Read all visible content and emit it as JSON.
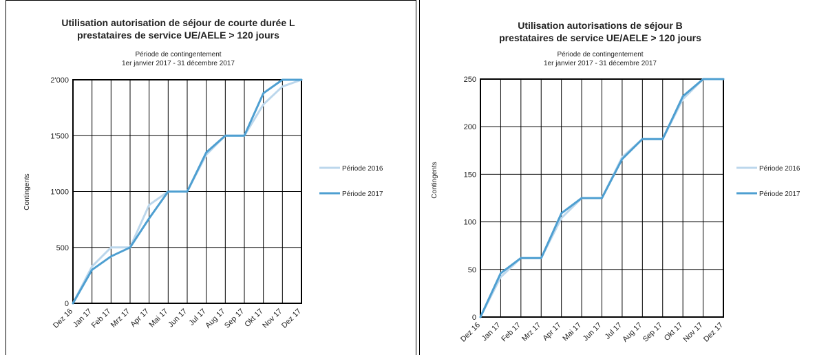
{
  "colors": {
    "p2016": "#bcd7ec",
    "p2017": "#4e9fd1",
    "grid": "#000000"
  },
  "chart_data": [
    {
      "type": "line",
      "title_line1": "Utilisation autorisation de séjour de courte durée L",
      "title_line2": "prestataires de service UE/AELE > 120 jours",
      "subtitle_line1": "Période de contingentement",
      "subtitle_line2": "1er janvier 2017 - 31 décembre 2017",
      "ylabel": "Contingents",
      "ylim": [
        0,
        2000
      ],
      "yticks": [
        0,
        500,
        1000,
        1500,
        2000
      ],
      "ytick_labels": [
        "0",
        "500",
        "1'000",
        "1'500",
        "2'000"
      ],
      "categories": [
        "Dez 16",
        "Jan 17",
        "Feb 17",
        "Mrz 17",
        "Apr 17",
        "Mai 17",
        "Jun 17",
        "Jul 17",
        "Aug 17",
        "Sep 17",
        "Okt 17",
        "Nov 17",
        "Dez 17"
      ],
      "grid": true,
      "legend_position": "right",
      "series": [
        {
          "name": "Période 2016",
          "color": "#bcd7ec",
          "values": [
            0,
            330,
            500,
            500,
            880,
            1000,
            1000,
            1330,
            1500,
            1500,
            1780,
            1940,
            2000
          ]
        },
        {
          "name": "Période 2017",
          "color": "#4e9fd1",
          "values": [
            0,
            300,
            420,
            500,
            760,
            1000,
            1000,
            1350,
            1500,
            1500,
            1880,
            2000,
            2000
          ]
        }
      ]
    },
    {
      "type": "line",
      "title_line1": "Utilisation autorisations de séjour B",
      "title_line2": "prestataires de service UE/AELE > 120 jours",
      "subtitle_line1": "Période de contingentement",
      "subtitle_line2": "1er janvier 2017 - 31 décembre 2017",
      "ylabel": "Contingents",
      "ylim": [
        0,
        250
      ],
      "yticks": [
        0,
        50,
        100,
        150,
        200,
        250
      ],
      "ytick_labels": [
        "0",
        "50",
        "100",
        "150",
        "200",
        "250"
      ],
      "categories": [
        "Dez 16",
        "Jan 17",
        "Feb 17",
        "Mrz 17",
        "Apr 17",
        "Mai 17",
        "Jun 17",
        "Jul 17",
        "Aug 17",
        "Sep 17",
        "Okt 17",
        "Nov 17",
        "Dez 17"
      ],
      "grid": true,
      "legend_position": "right",
      "series": [
        {
          "name": "Période 2016",
          "color": "#bcd7ec",
          "values": [
            0,
            42,
            62,
            62,
            104,
            125,
            125,
            168,
            187,
            187,
            229,
            250,
            250
          ]
        },
        {
          "name": "Période 2017",
          "color": "#4e9fd1",
          "values": [
            0,
            46,
            62,
            62,
            109,
            125,
            125,
            166,
            187,
            187,
            232,
            250,
            250
          ]
        }
      ]
    }
  ]
}
